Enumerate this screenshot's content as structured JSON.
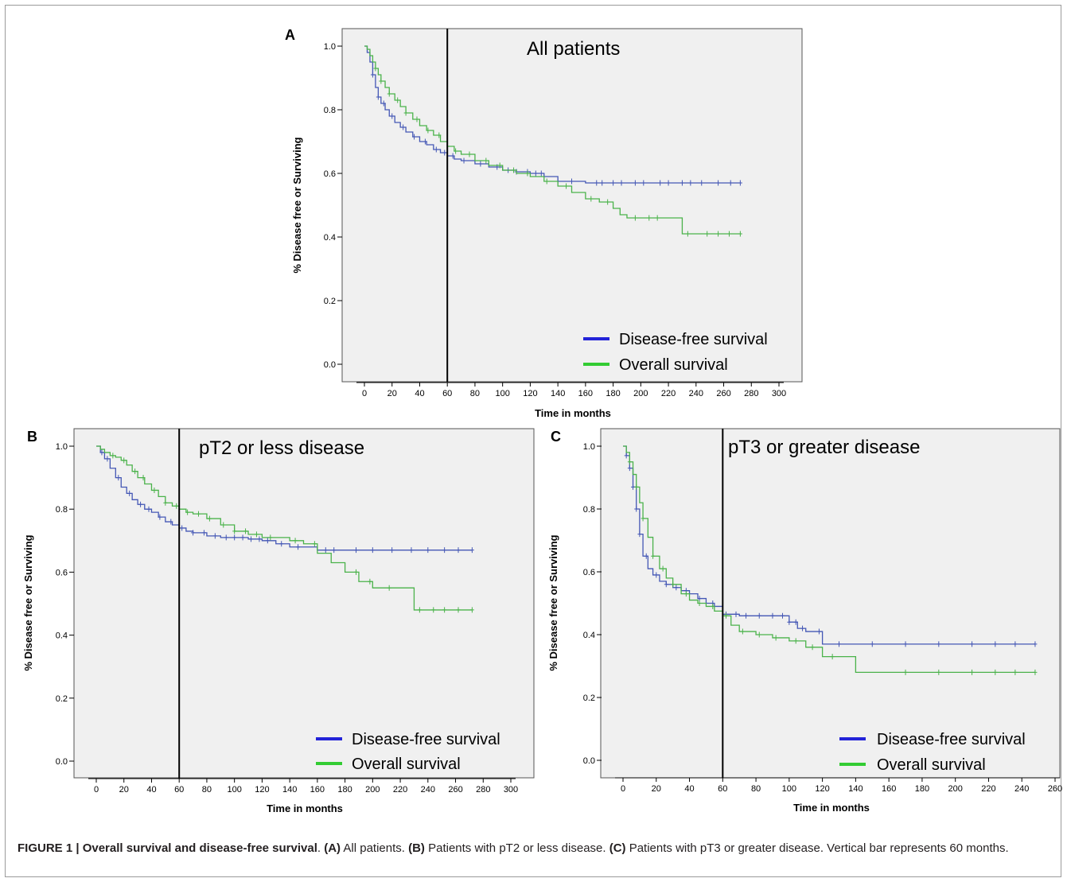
{
  "chart_data": [
    {
      "panel": "A",
      "type": "line",
      "title": "All patients",
      "xlabel": "Time in months",
      "ylabel": "% Disease free or Surviving",
      "xlim": [
        0,
        300
      ],
      "ylim": [
        0,
        1.0
      ],
      "xticks": [
        "0",
        "20",
        "40",
        "60",
        "80",
        "100",
        "120",
        "140",
        "160",
        "180",
        "200",
        "220",
        "240",
        "260",
        "280",
        "300"
      ],
      "yticks": [
        "0.0",
        "0.2",
        "0.4",
        "0.6",
        "0.8",
        "1.0"
      ],
      "vline_x": 60,
      "legend": {
        "position": "bottom-right",
        "entries": [
          "Disease-free survival",
          "Overall survival"
        ]
      },
      "grid": false,
      "series": [
        {
          "name": "Disease-free survival",
          "color": "#4457b5",
          "x": [
            0,
            2,
            4,
            6,
            8,
            10,
            12,
            15,
            18,
            22,
            26,
            30,
            35,
            40,
            45,
            50,
            55,
            60,
            65,
            70,
            80,
            90,
            100,
            110,
            120,
            130,
            140,
            160,
            180,
            200,
            220,
            240,
            260,
            272
          ],
          "y": [
            1.0,
            0.98,
            0.95,
            0.91,
            0.87,
            0.84,
            0.82,
            0.8,
            0.78,
            0.76,
            0.745,
            0.73,
            0.715,
            0.7,
            0.69,
            0.675,
            0.665,
            0.655,
            0.645,
            0.64,
            0.63,
            0.62,
            0.61,
            0.605,
            0.6,
            0.59,
            0.575,
            0.57,
            0.57,
            0.57,
            0.57,
            0.57,
            0.57,
            0.57
          ],
          "censors": [
            6,
            10,
            14,
            20,
            28,
            36,
            44,
            52,
            58,
            64,
            72,
            84,
            96,
            104,
            110,
            118,
            124,
            128,
            140,
            150,
            168,
            172,
            180,
            186,
            196,
            202,
            214,
            220,
            230,
            236,
            244,
            256,
            265,
            272
          ]
        },
        {
          "name": "Overall survival",
          "color": "#4ab24a",
          "x": [
            0,
            2,
            4,
            6,
            8,
            10,
            12,
            15,
            18,
            22,
            26,
            30,
            35,
            40,
            45,
            50,
            55,
            60,
            65,
            70,
            80,
            90,
            100,
            110,
            120,
            130,
            140,
            150,
            160,
            170,
            180,
            185,
            190,
            200,
            210,
            220,
            230,
            240,
            250,
            260,
            272
          ],
          "y": [
            1.0,
            0.99,
            0.97,
            0.95,
            0.93,
            0.91,
            0.89,
            0.87,
            0.85,
            0.83,
            0.81,
            0.79,
            0.77,
            0.75,
            0.735,
            0.72,
            0.7,
            0.685,
            0.67,
            0.66,
            0.64,
            0.625,
            0.61,
            0.6,
            0.59,
            0.575,
            0.56,
            0.54,
            0.52,
            0.51,
            0.49,
            0.47,
            0.46,
            0.46,
            0.46,
            0.46,
            0.41,
            0.41,
            0.41,
            0.41,
            0.41
          ],
          "censors": [
            8,
            12,
            18,
            24,
            30,
            38,
            46,
            54,
            66,
            76,
            88,
            98,
            108,
            118,
            132,
            146,
            164,
            176,
            196,
            206,
            212,
            234,
            248,
            256,
            264,
            272
          ]
        }
      ]
    },
    {
      "panel": "B",
      "type": "line",
      "title": "pT2 or less disease",
      "xlabel": "Time in months",
      "ylabel": "% Disease free or Surviving",
      "xlim": [
        0,
        300
      ],
      "ylim": [
        0,
        1.0
      ],
      "xticks": [
        "0",
        "20",
        "40",
        "60",
        "80",
        "100",
        "120",
        "140",
        "160",
        "180",
        "200",
        "220",
        "240",
        "260",
        "280",
        "300"
      ],
      "yticks": [
        "0.0",
        "0.2",
        "0.4",
        "0.6",
        "0.8",
        "1.0"
      ],
      "vline_x": 60,
      "legend": {
        "position": "bottom-right",
        "entries": [
          "Disease-free survival",
          "Overall survival"
        ]
      },
      "grid": false,
      "series": [
        {
          "name": "Disease-free survival",
          "color": "#4457b5",
          "x": [
            0,
            3,
            6,
            10,
            14,
            18,
            22,
            26,
            30,
            35,
            40,
            45,
            50,
            55,
            60,
            65,
            70,
            80,
            90,
            100,
            110,
            120,
            130,
            140,
            160,
            180,
            200,
            220,
            240,
            260,
            272
          ],
          "y": [
            1.0,
            0.98,
            0.96,
            0.93,
            0.9,
            0.87,
            0.85,
            0.83,
            0.815,
            0.8,
            0.79,
            0.775,
            0.76,
            0.75,
            0.74,
            0.73,
            0.725,
            0.715,
            0.71,
            0.71,
            0.705,
            0.7,
            0.69,
            0.68,
            0.67,
            0.67,
            0.67,
            0.67,
            0.67,
            0.67,
            0.67
          ],
          "censors": [
            4,
            8,
            16,
            24,
            32,
            38,
            46,
            54,
            62,
            70,
            78,
            86,
            94,
            100,
            106,
            112,
            118,
            124,
            134,
            146,
            166,
            172,
            188,
            200,
            214,
            228,
            240,
            252,
            262,
            272
          ]
        },
        {
          "name": "Overall survival",
          "color": "#4ab24a",
          "x": [
            0,
            3,
            6,
            10,
            14,
            18,
            22,
            26,
            30,
            35,
            40,
            45,
            50,
            55,
            60,
            65,
            70,
            80,
            90,
            100,
            110,
            120,
            130,
            140,
            150,
            160,
            170,
            180,
            190,
            200,
            210,
            220,
            230,
            240,
            250,
            260,
            272
          ],
          "y": [
            1.0,
            0.99,
            0.98,
            0.97,
            0.965,
            0.955,
            0.94,
            0.92,
            0.9,
            0.88,
            0.86,
            0.84,
            0.82,
            0.81,
            0.8,
            0.79,
            0.785,
            0.77,
            0.75,
            0.73,
            0.72,
            0.71,
            0.71,
            0.7,
            0.69,
            0.66,
            0.63,
            0.6,
            0.57,
            0.55,
            0.55,
            0.55,
            0.48,
            0.48,
            0.48,
            0.48,
            0.48
          ],
          "censors": [
            12,
            20,
            28,
            34,
            42,
            50,
            58,
            66,
            74,
            82,
            92,
            100,
            108,
            116,
            126,
            144,
            158,
            188,
            198,
            212,
            234,
            244,
            252,
            262,
            272
          ]
        }
      ]
    },
    {
      "panel": "C",
      "type": "line",
      "title": "pT3 or greater disease",
      "xlabel": "Time in months",
      "ylabel": "% Disease free or Surviving",
      "xlim": [
        0,
        260
      ],
      "ylim": [
        0,
        1.0
      ],
      "xticks": [
        "0",
        "20",
        "40",
        "60",
        "80",
        "100",
        "120",
        "140",
        "160",
        "180",
        "200",
        "220",
        "240",
        "260"
      ],
      "yticks": [
        "0.0",
        "0.2",
        "0.4",
        "0.6",
        "0.8",
        "1.0"
      ],
      "vline_x": 60,
      "legend": {
        "position": "bottom-right",
        "entries": [
          "Disease-free survival",
          "Overall survival"
        ]
      },
      "grid": false,
      "series": [
        {
          "name": "Disease-free survival",
          "color": "#4457b5",
          "x": [
            0,
            2,
            4,
            6,
            8,
            10,
            12,
            15,
            18,
            22,
            26,
            30,
            35,
            40,
            45,
            50,
            55,
            60,
            70,
            80,
            90,
            100,
            105,
            110,
            120,
            140,
            160,
            180,
            200,
            220,
            240,
            248
          ],
          "y": [
            1.0,
            0.97,
            0.93,
            0.87,
            0.8,
            0.72,
            0.65,
            0.61,
            0.59,
            0.57,
            0.56,
            0.55,
            0.54,
            0.53,
            0.515,
            0.5,
            0.49,
            0.465,
            0.46,
            0.46,
            0.46,
            0.44,
            0.42,
            0.41,
            0.37,
            0.37,
            0.37,
            0.37,
            0.37,
            0.37,
            0.37,
            0.37
          ],
          "censors": [
            2,
            4,
            6,
            8,
            10,
            14,
            20,
            26,
            32,
            38,
            46,
            54,
            62,
            68,
            74,
            82,
            90,
            96,
            100,
            104,
            108,
            118,
            130,
            150,
            170,
            190,
            210,
            224,
            236,
            248
          ]
        },
        {
          "name": "Overall survival",
          "color": "#4ab24a",
          "x": [
            0,
            2,
            4,
            6,
            8,
            10,
            12,
            15,
            18,
            22,
            26,
            30,
            35,
            40,
            45,
            50,
            55,
            60,
            65,
            70,
            80,
            90,
            100,
            110,
            120,
            130,
            140,
            160,
            180,
            200,
            220,
            240,
            248
          ],
          "y": [
            1.0,
            0.98,
            0.95,
            0.91,
            0.87,
            0.82,
            0.77,
            0.71,
            0.65,
            0.61,
            0.58,
            0.56,
            0.53,
            0.51,
            0.5,
            0.49,
            0.475,
            0.46,
            0.43,
            0.41,
            0.4,
            0.39,
            0.38,
            0.36,
            0.33,
            0.33,
            0.28,
            0.28,
            0.28,
            0.28,
            0.28,
            0.28,
            0.28
          ],
          "censors": [
            4,
            8,
            12,
            18,
            24,
            30,
            38,
            46,
            54,
            62,
            72,
            82,
            92,
            104,
            114,
            126,
            170,
            190,
            210,
            224,
            236,
            248
          ]
        }
      ]
    }
  ],
  "caption": {
    "lead": "FIGURE 1 | Overall survival and disease-free survival",
    "sep": ".",
    "a_tag": "(A)",
    "a_text": " All patients. ",
    "b_tag": "(B)",
    "b_text": " Patients with pT2 or less disease. ",
    "c_tag": "(C)",
    "c_text": " Patients with pT3 or greater disease. Vertical bar represents 60 months."
  }
}
